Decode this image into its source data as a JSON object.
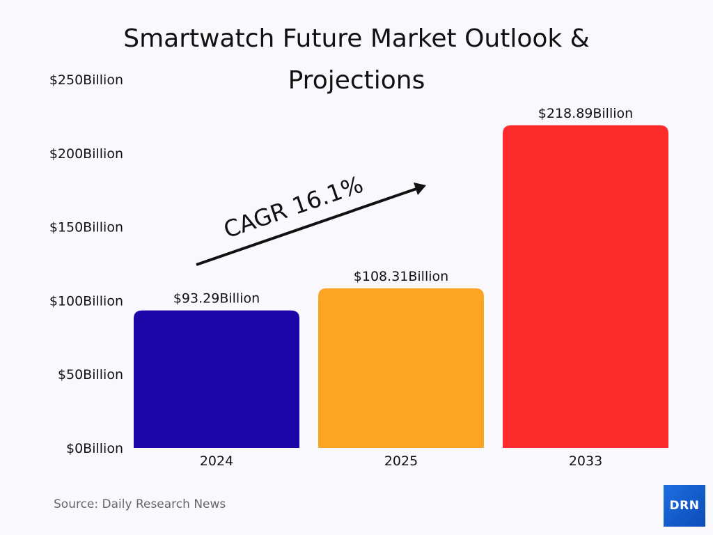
{
  "chart_data": {
    "type": "bar",
    "title": "Smartwatch Future Market Outlook & Projections",
    "categories": [
      "2024",
      "2025",
      "2033"
    ],
    "values": [
      93.29,
      108.31,
      218.89
    ],
    "data_labels": [
      "$93.29Billion",
      "$108.31Billion",
      "$218.89Billion"
    ],
    "colors": [
      "#1c06a8",
      "#fca524",
      "#fc2c2c"
    ],
    "ylim": [
      0,
      250
    ],
    "yticks": [
      0,
      50,
      100,
      150,
      200,
      250
    ],
    "ytick_labels": [
      "$0Billion",
      "$50Billion",
      "$100Billion",
      "$150Billion",
      "$200Billion",
      "$250Billion"
    ],
    "xlabel": "",
    "ylabel": "",
    "grid": false,
    "annotation": "CAGR 16.1%"
  },
  "source": "Source: Daily Research News",
  "logo_text": "DRN"
}
